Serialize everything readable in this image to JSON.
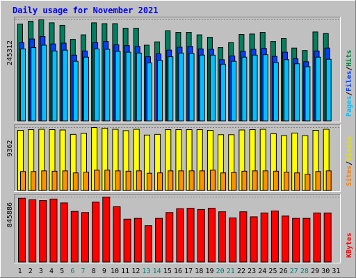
{
  "chart_data": {
    "type": "bar",
    "title": "Daily usage for November 2021",
    "x": [
      "1",
      "2",
      "3",
      "4",
      "5",
      "6",
      "7",
      "8",
      "9",
      "10",
      "11",
      "12",
      "13",
      "14",
      "15",
      "16",
      "17",
      "18",
      "19",
      "20",
      "21",
      "22",
      "23",
      "24",
      "25",
      "26",
      "27",
      "28",
      "29",
      "30",
      "31"
    ],
    "weekend_days": [
      "6",
      "7",
      "13",
      "14",
      "20",
      "21",
      "27",
      "28"
    ],
    "panels": [
      {
        "id": "hits",
        "max_label": "245312",
        "max_value": 245312,
        "legend": [
          {
            "label": "Pages",
            "color": "#00c0ff"
          },
          {
            "label": "/",
            "color": "#000000"
          },
          {
            "label": "Files",
            "color": "#0040ff"
          },
          {
            "label": "/",
            "color": "#000000"
          },
          {
            "label": "Hits",
            "color": "#008040"
          }
        ],
        "series": [
          {
            "name": "Hits",
            "color": "#008060",
            "values": [
              235000,
              242000,
              245312,
              238000,
              232000,
              198000,
              209000,
              238000,
              236000,
              236000,
              225000,
              225000,
              184000,
              192000,
              219000,
              215000,
              215000,
              209000,
              203000,
              178000,
              190000,
              210000,
              211000,
              215000,
              193000,
              200000,
              177000,
              171000,
              216000,
              212000,
              0
            ]
          },
          {
            "name": "Files",
            "color": "#0040ff",
            "values": [
              190000,
              199000,
              205000,
              187000,
              189000,
              160000,
              170000,
              190000,
              193000,
              185000,
              183000,
              181000,
              156000,
              163000,
              172000,
              179000,
              181000,
              175000,
              174000,
              149000,
              158000,
              169000,
              174000,
              176000,
              157000,
              167000,
              151000,
              144000,
              170000,
              177000,
              0
            ]
          },
          {
            "name": "Pages",
            "color": "#00c0ff",
            "values": [
              175000,
              178000,
              184000,
              170000,
              172000,
              145000,
              155000,
              175000,
              174000,
              169000,
              167000,
              165000,
              141000,
              147000,
              156000,
              165000,
              164000,
              160000,
              160000,
              138000,
              145000,
              155000,
              160000,
              161000,
              142000,
              149000,
              139000,
              132000,
              155000,
              150000,
              0
            ]
          }
        ]
      },
      {
        "id": "visits",
        "max_label": "9362",
        "max_value": 9362,
        "legend": [
          {
            "label": "Sites",
            "color": "#ff8000"
          },
          {
            "label": "/",
            "color": "#000000"
          },
          {
            "label": "Visits",
            "color": "#e0e000"
          }
        ],
        "series": [
          {
            "name": "Visits",
            "color": "#ffff00",
            "values": [
              8950,
              9050,
              9100,
              9050,
              9000,
              8350,
              8500,
              9362,
              9250,
              9100,
              8900,
              9100,
              8250,
              8350,
              9050,
              9050,
              9050,
              9050,
              8950,
              8300,
              8300,
              9000,
              9050,
              9100,
              8450,
              8150,
              8550,
              8150,
              8950,
              9100,
              0
            ]
          },
          {
            "name": "Sites",
            "color": "#ff9000",
            "values": [
              2850,
              2850,
              2950,
              2900,
              2950,
              2650,
              2750,
              3050,
              3050,
              2950,
              2900,
              2950,
              2600,
              2650,
              2950,
              2950,
              2950,
              2950,
              3050,
              2650,
              2700,
              2900,
              2950,
              2950,
              2900,
              2750,
              2650,
              2450,
              2850,
              2950,
              0
            ]
          }
        ]
      },
      {
        "id": "kbytes",
        "max_label": "845886",
        "max_value": 845886,
        "legend": [
          {
            "label": "KBytes",
            "color": "#ff0000"
          }
        ],
        "series": [
          {
            "name": "KBytes",
            "color": "#ff0000",
            "values": [
              830000,
              810000,
              800000,
              820000,
              770000,
              660000,
              645000,
              780000,
              845886,
              720000,
              560000,
              570000,
              475000,
              570000,
              645000,
              695000,
              700000,
              685000,
              700000,
              655000,
              575000,
              655000,
              590000,
              640000,
              665000,
              600000,
              570000,
              570000,
              640000,
              640000,
              0
            ]
          }
        ]
      }
    ]
  }
}
